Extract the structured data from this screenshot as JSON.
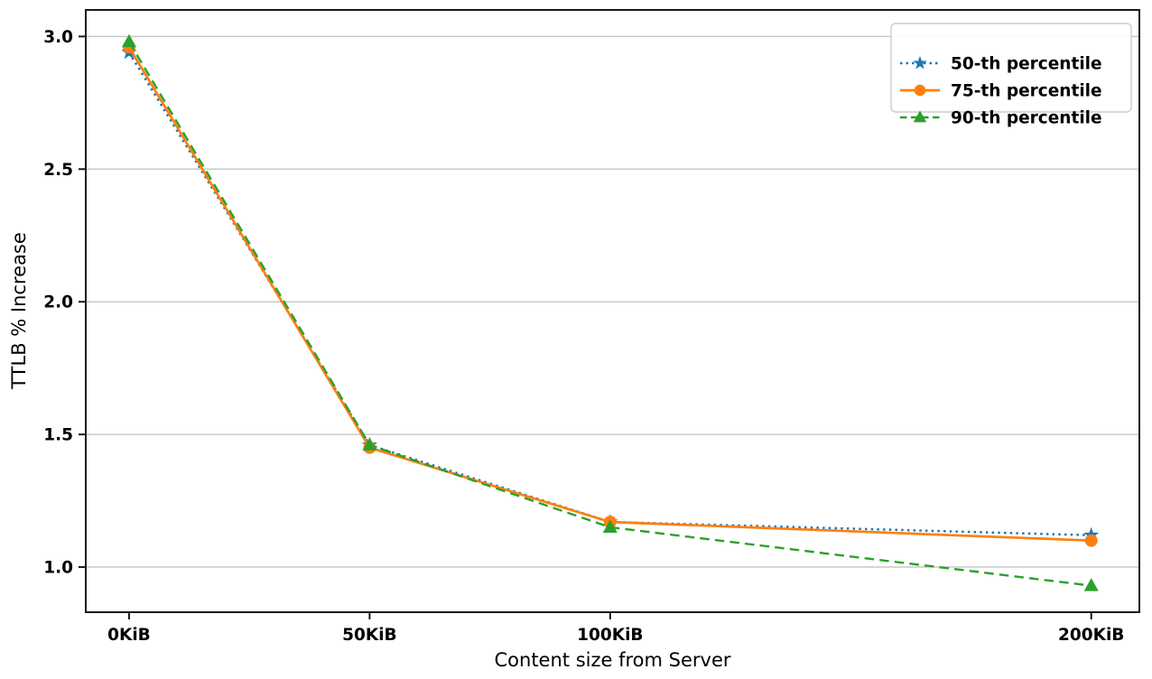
{
  "figure": {
    "xlabel": "Content size from Server",
    "ylabel": "TTLB % Increase",
    "background": "#ffffff"
  },
  "chart_data": {
    "type": "line",
    "title": "",
    "xlabel": "Content size from Server",
    "ylabel": "TTLB % Increase",
    "x": [
      0,
      50,
      100,
      200
    ],
    "x_tick_labels": [
      "0KiB",
      "50KiB",
      "100KiB",
      "200KiB"
    ],
    "y_ticks": [
      1.0,
      1.5,
      2.0,
      2.5,
      3.0
    ],
    "y_tick_labels": [
      "1.0",
      "1.5",
      "2.0",
      "2.5",
      "3.0"
    ],
    "xlim": [
      -9,
      210
    ],
    "ylim": [
      0.83,
      3.1
    ],
    "grid": "horizontal",
    "gridline_color": "#c8c8c8",
    "spine_color": "#1a1a1a",
    "legend_position": "upper right",
    "series": [
      {
        "name": "50-th percentile",
        "color": "#1f77b4",
        "linestyle": "dotted",
        "marker": "star",
        "values": [
          2.94,
          1.46,
          1.17,
          1.12
        ]
      },
      {
        "name": "75-th percentile",
        "color": "#ff7f0e",
        "linestyle": "solid",
        "marker": "circle",
        "values": [
          2.96,
          1.45,
          1.17,
          1.1
        ]
      },
      {
        "name": "90-th percentile",
        "color": "#2ca02c",
        "linestyle": "dashed",
        "marker": "triangle",
        "values": [
          2.98,
          1.46,
          1.15,
          0.93
        ]
      }
    ]
  }
}
